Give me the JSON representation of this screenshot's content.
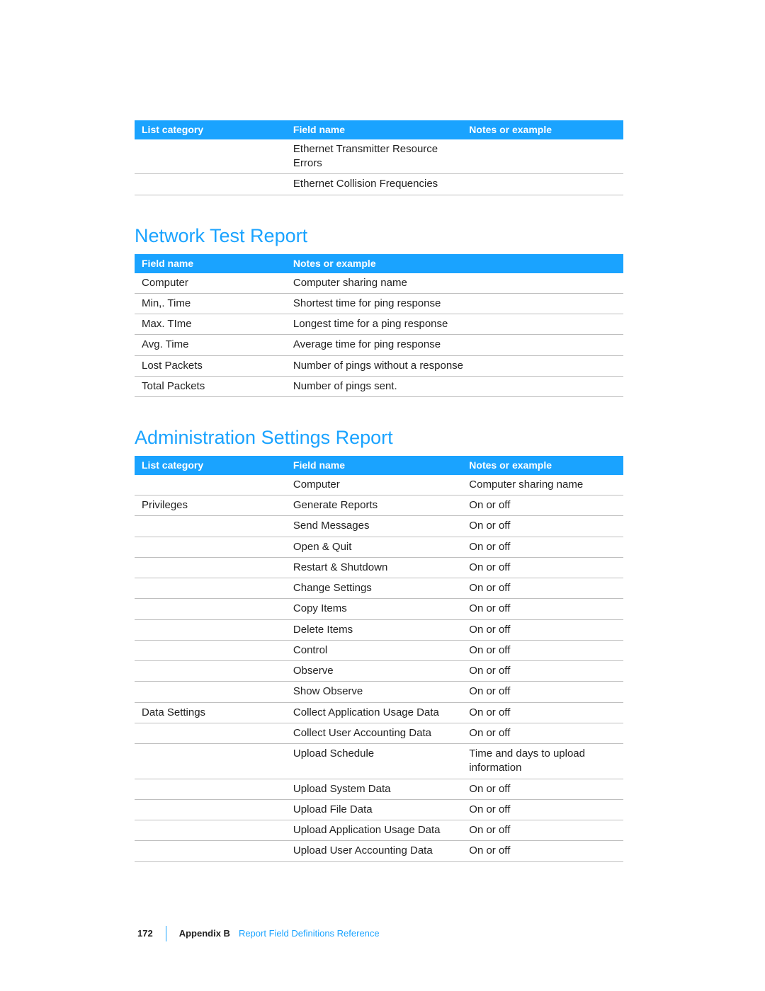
{
  "colors": {
    "accent": "#1aa3ff",
    "rule": "#bfbfbf",
    "text": "#222222",
    "background": "#ffffff"
  },
  "typography": {
    "body_fontsize_pt": 11,
    "heading_fontsize_pt": 20,
    "header_row_fontsize_pt": 10.5,
    "font_family": "Helvetica Neue / Myriad Pro"
  },
  "table1": {
    "columns": [
      "List category",
      "Field name",
      "Notes or example"
    ],
    "rows": [
      [
        "",
        "Ethernet Transmitter Resource Errors",
        ""
      ],
      [
        "",
        "Ethernet Collision Frequencies",
        ""
      ]
    ]
  },
  "section2": {
    "title": "Network Test Report"
  },
  "table2": {
    "columns": [
      "Field name",
      "Notes or example"
    ],
    "rows": [
      [
        "Computer",
        "Computer sharing name"
      ],
      [
        "Min,. Time",
        "Shortest time for ping response"
      ],
      [
        "Max. TIme",
        "Longest time for a ping response"
      ],
      [
        "Avg. Time",
        "Average time for ping response"
      ],
      [
        "Lost Packets",
        "Number of pings without a response"
      ],
      [
        "Total Packets",
        "Number of pings sent."
      ]
    ]
  },
  "section3": {
    "title": "Administration Settings Report"
  },
  "table3": {
    "columns": [
      "List category",
      "Field name",
      "Notes or example"
    ],
    "rows": [
      [
        "",
        "Computer",
        "Computer sharing name"
      ],
      [
        "Privileges",
        "Generate Reports",
        "On or off"
      ],
      [
        "",
        "Send Messages",
        "On or off"
      ],
      [
        "",
        "Open & Quit",
        "On or off"
      ],
      [
        "",
        "Restart & Shutdown",
        "On or off"
      ],
      [
        "",
        "Change Settings",
        "On or off"
      ],
      [
        "",
        "Copy Items",
        "On or off"
      ],
      [
        "",
        "Delete Items",
        "On or off"
      ],
      [
        "",
        "Control",
        "On or off"
      ],
      [
        "",
        "Observe",
        "On or off"
      ],
      [
        "",
        "Show Observe",
        "On or off"
      ],
      [
        "Data Settings",
        "Collect Application Usage Data",
        "On or off"
      ],
      [
        "",
        "Collect User Accounting Data",
        "On or off"
      ],
      [
        "",
        "Upload Schedule",
        "Time and days to upload information"
      ],
      [
        "",
        "Upload System Data",
        "On or off"
      ],
      [
        "",
        "Upload File Data",
        "On or off"
      ],
      [
        "",
        "Upload Application Usage Data",
        "On or off"
      ],
      [
        "",
        "Upload User Accounting Data",
        "On or off"
      ]
    ]
  },
  "footer": {
    "page_number": "172",
    "appendix": "Appendix B",
    "title": "Report Field Definitions Reference"
  }
}
